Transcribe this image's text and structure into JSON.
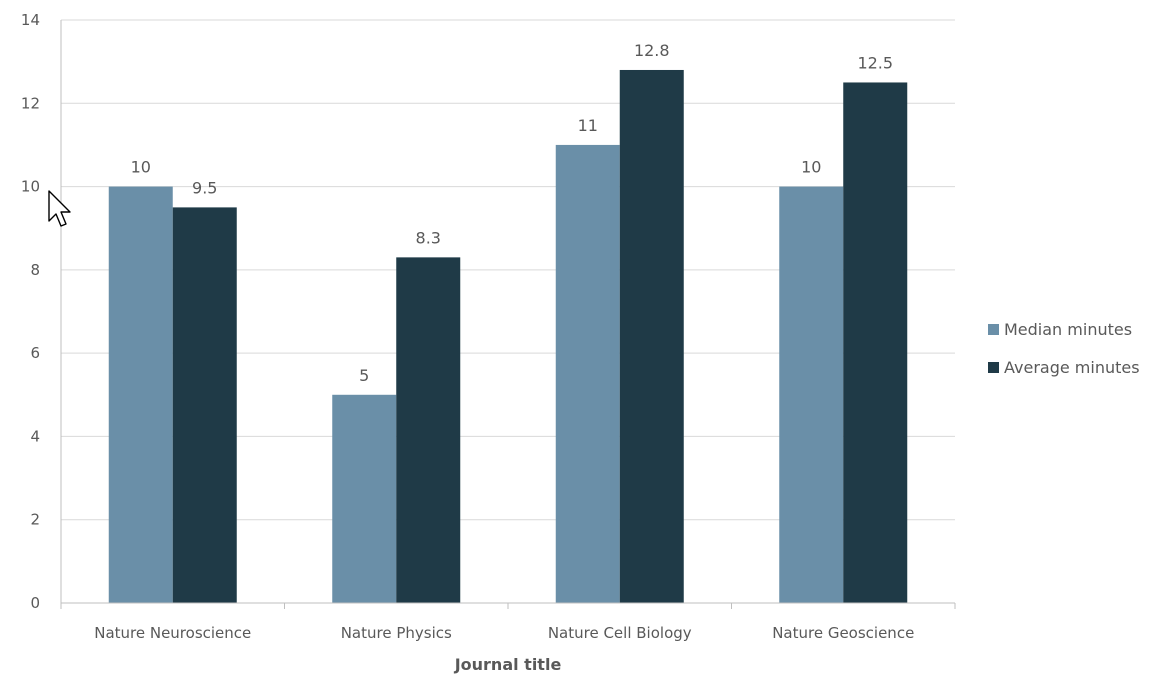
{
  "chart_data": {
    "type": "bar",
    "categories": [
      "Nature Neuroscience",
      "Nature Physics",
      "Nature Cell Biology",
      "Nature Geoscience"
    ],
    "series": [
      {
        "name": "Median minutes",
        "values": [
          10,
          5,
          11,
          10
        ],
        "color": "#6a8fa8"
      },
      {
        "name": "Average minutes",
        "values": [
          9.5,
          8.3,
          12.8,
          12.5
        ],
        "color": "#1f3a47"
      }
    ],
    "xlabel": "Journal title",
    "ylabel": "",
    "ylim": [
      0,
      14
    ],
    "yticks": [
      0,
      2,
      4,
      6,
      8,
      10,
      12,
      14
    ],
    "grid": true,
    "legend_position": "right",
    "data_labels": true
  },
  "colors": {
    "gridline": "#d9d9d9",
    "axis": "#bfbfbf",
    "text": "#595959"
  },
  "cursor": {
    "icon": "mouse-pointer-icon"
  }
}
